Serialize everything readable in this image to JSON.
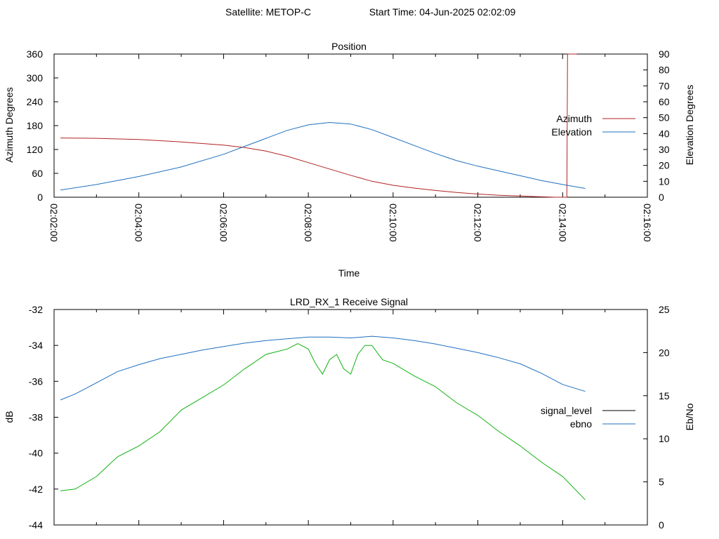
{
  "header": {
    "satellite_text": "Satellite: METOP-C",
    "start_time_text": "Start Time: 04-Jun-2025 02:02:09"
  },
  "colors": {
    "azimuth": "#b22222",
    "elevation": "#1f6fbf",
    "signal_level": "#000000",
    "ebno_blue": "#1f6fbf",
    "signal_green": "#11b211",
    "axis": "#000000"
  },
  "chart_data": [
    {
      "type": "line",
      "title": "Position",
      "xlabel": "Time",
      "ylabel": "Azimuth Degrees",
      "y2label": "Elevation Degrees",
      "x_ticks": [
        "02:02:00",
        "02:04:00",
        "02:06:00",
        "02:08:00",
        "02:10:00",
        "02:12:00",
        "02:14:00",
        "02:16:00"
      ],
      "x_range": [
        "02:02:00",
        "02:16:00"
      ],
      "ylim": [
        0,
        360
      ],
      "y_ticks": [
        0,
        60,
        120,
        180,
        240,
        300,
        360
      ],
      "y2lim": [
        0,
        90
      ],
      "y2_ticks": [
        0,
        10,
        20,
        30,
        40,
        50,
        60,
        70,
        80,
        90
      ],
      "legend_position": "right",
      "grid": false,
      "series": [
        {
          "name": "Azimuth",
          "axis": "left",
          "points": [
            [
              "02:02:09",
              149
            ],
            [
              "02:03:00",
              148
            ],
            [
              "02:04:00",
              145
            ],
            [
              "02:05:00",
              139
            ],
            [
              "02:06:00",
              131
            ],
            [
              "02:06:30",
              125
            ],
            [
              "02:07:00",
              116
            ],
            [
              "02:07:30",
              103
            ],
            [
              "02:08:00",
              87
            ],
            [
              "02:08:30",
              71
            ],
            [
              "02:09:00",
              55
            ],
            [
              "02:09:30",
              40
            ],
            [
              "02:10:00",
              30
            ],
            [
              "02:10:30",
              23
            ],
            [
              "02:11:00",
              17
            ],
            [
              "02:11:30",
              12
            ],
            [
              "02:12:00",
              8
            ],
            [
              "02:12:30",
              5
            ],
            [
              "02:13:00",
              3
            ],
            [
              "02:13:30",
              1
            ],
            [
              "02:13:50",
              0
            ],
            [
              "02:14:06",
              0
            ],
            [
              "02:14:07",
              360
            ],
            [
              "02:14:20",
              360
            ]
          ]
        },
        {
          "name": "Elevation",
          "axis": "right",
          "points": [
            [
              "02:02:09",
              4.5
            ],
            [
              "02:03:00",
              8
            ],
            [
              "02:04:00",
              13
            ],
            [
              "02:05:00",
              19
            ],
            [
              "02:06:00",
              27
            ],
            [
              "02:06:30",
              32
            ],
            [
              "02:07:00",
              37
            ],
            [
              "02:07:30",
              42
            ],
            [
              "02:08:00",
              45.5
            ],
            [
              "02:08:30",
              47
            ],
            [
              "02:09:00",
              46
            ],
            [
              "02:09:30",
              42.5
            ],
            [
              "02:10:00",
              37.5
            ],
            [
              "02:10:30",
              32.5
            ],
            [
              "02:11:00",
              27.5
            ],
            [
              "02:11:30",
              23
            ],
            [
              "02:12:00",
              19.5
            ],
            [
              "02:12:30",
              16.5
            ],
            [
              "02:13:00",
              13.5
            ],
            [
              "02:13:30",
              10.5
            ],
            [
              "02:14:00",
              8
            ],
            [
              "02:14:32",
              5.5
            ]
          ]
        }
      ]
    },
    {
      "type": "line",
      "title": "LRD_RX_1 Receive Signal",
      "xlabel": "",
      "ylabel": "dB",
      "y2label": "Eb/No",
      "x_range": [
        "02:02:00",
        "02:16:00"
      ],
      "ylim": [
        -44,
        -32
      ],
      "y_ticks": [
        -44,
        -42,
        -40,
        -38,
        -36,
        -34,
        -32
      ],
      "y2lim": [
        0,
        25
      ],
      "y2_ticks": [
        0,
        5,
        10,
        15,
        20,
        25
      ],
      "legend_position": "right",
      "grid": false,
      "series": [
        {
          "name": "signal_level",
          "axis": "left",
          "legend_color_key": "signal_level",
          "draw_color_key": "signal_green",
          "points": [
            [
              "02:02:09",
              -42.1
            ],
            [
              "02:02:30",
              -42.0
            ],
            [
              "02:03:00",
              -41.3
            ],
            [
              "02:03:30",
              -40.2
            ],
            [
              "02:04:00",
              -39.6
            ],
            [
              "02:04:30",
              -38.8
            ],
            [
              "02:05:00",
              -37.6
            ],
            [
              "02:05:30",
              -36.9
            ],
            [
              "02:06:00",
              -36.2
            ],
            [
              "02:06:30",
              -35.3
            ],
            [
              "02:07:00",
              -34.5
            ],
            [
              "02:07:30",
              -34.2
            ],
            [
              "02:07:45",
              -33.9
            ],
            [
              "02:08:00",
              -34.2
            ],
            [
              "02:08:10",
              -35.0
            ],
            [
              "02:08:20",
              -35.6
            ],
            [
              "02:08:30",
              -34.8
            ],
            [
              "02:08:40",
              -34.5
            ],
            [
              "02:08:50",
              -35.3
            ],
            [
              "02:09:00",
              -35.6
            ],
            [
              "02:09:10",
              -34.5
            ],
            [
              "02:09:20",
              -34.0
            ],
            [
              "02:09:30",
              -34.0
            ],
            [
              "02:09:45",
              -34.8
            ],
            [
              "02:10:00",
              -35.0
            ],
            [
              "02:10:30",
              -35.7
            ],
            [
              "02:11:00",
              -36.3
            ],
            [
              "02:11:30",
              -37.2
            ],
            [
              "02:12:00",
              -37.9
            ],
            [
              "02:12:30",
              -38.8
            ],
            [
              "02:13:00",
              -39.6
            ],
            [
              "02:13:30",
              -40.5
            ],
            [
              "02:14:00",
              -41.3
            ],
            [
              "02:14:32",
              -42.6
            ]
          ]
        },
        {
          "name": "ebno",
          "axis": "right",
          "legend_color_key": "ebno_blue",
          "draw_color_key": "ebno_blue",
          "points": [
            [
              "02:02:09",
              14.5
            ],
            [
              "02:02:30",
              15.2
            ],
            [
              "02:03:00",
              16.5
            ],
            [
              "02:03:30",
              17.8
            ],
            [
              "02:04:00",
              18.6
            ],
            [
              "02:04:30",
              19.3
            ],
            [
              "02:05:00",
              19.8
            ],
            [
              "02:05:30",
              20.3
            ],
            [
              "02:06:00",
              20.7
            ],
            [
              "02:06:30",
              21.1
            ],
            [
              "02:07:00",
              21.4
            ],
            [
              "02:07:30",
              21.6
            ],
            [
              "02:08:00",
              21.8
            ],
            [
              "02:08:30",
              21.8
            ],
            [
              "02:09:00",
              21.7
            ],
            [
              "02:09:30",
              21.9
            ],
            [
              "02:10:00",
              21.7
            ],
            [
              "02:10:30",
              21.4
            ],
            [
              "02:11:00",
              21.0
            ],
            [
              "02:11:30",
              20.5
            ],
            [
              "02:12:00",
              20.0
            ],
            [
              "02:12:30",
              19.4
            ],
            [
              "02:13:00",
              18.7
            ],
            [
              "02:13:30",
              17.6
            ],
            [
              "02:14:00",
              16.3
            ],
            [
              "02:14:32",
              15.5
            ]
          ]
        }
      ]
    }
  ]
}
